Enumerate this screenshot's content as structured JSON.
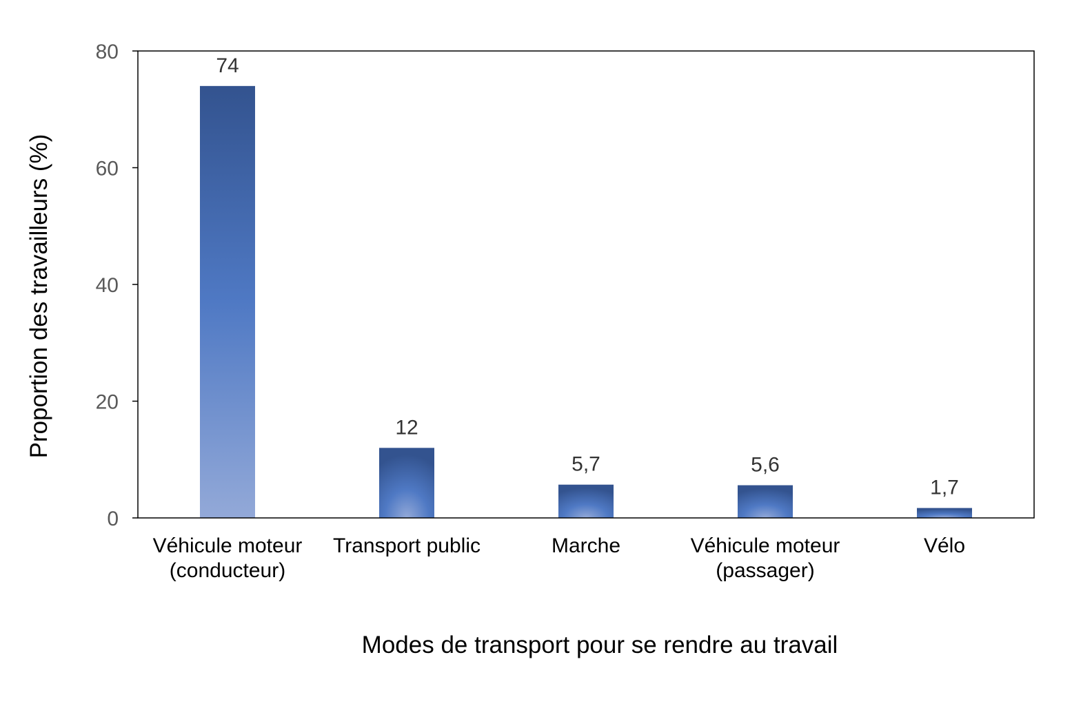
{
  "chart_data": {
    "type": "bar",
    "title": "",
    "xlabel": "Modes de transport pour se rendre au travail",
    "ylabel": "Proportion des travailleurs (%)",
    "ylim": [
      0,
      80
    ],
    "yticks": [
      0,
      20,
      40,
      60,
      80
    ],
    "grid": false,
    "legend": "none",
    "categories": [
      "Véhicule moteur (conducteur)",
      "Transport public",
      "Marche",
      "Véhicule moteur (passager)",
      "Vélo"
    ],
    "category_lines": [
      [
        "Véhicule moteur",
        "(conducteur)"
      ],
      [
        "Transport public"
      ],
      [
        "Marche"
      ],
      [
        "Véhicule moteur",
        "(passager)"
      ],
      [
        "Vélo"
      ]
    ],
    "values": [
      74,
      12,
      5.7,
      5.6,
      1.7
    ],
    "value_labels": [
      "74",
      "12",
      "5,7",
      "5,6",
      "1,7"
    ],
    "colors": {
      "bar_dark": "#33538f",
      "bar_mid": "#4f79c4",
      "bar_light": "#93a9d8",
      "axis": "#000000"
    }
  }
}
